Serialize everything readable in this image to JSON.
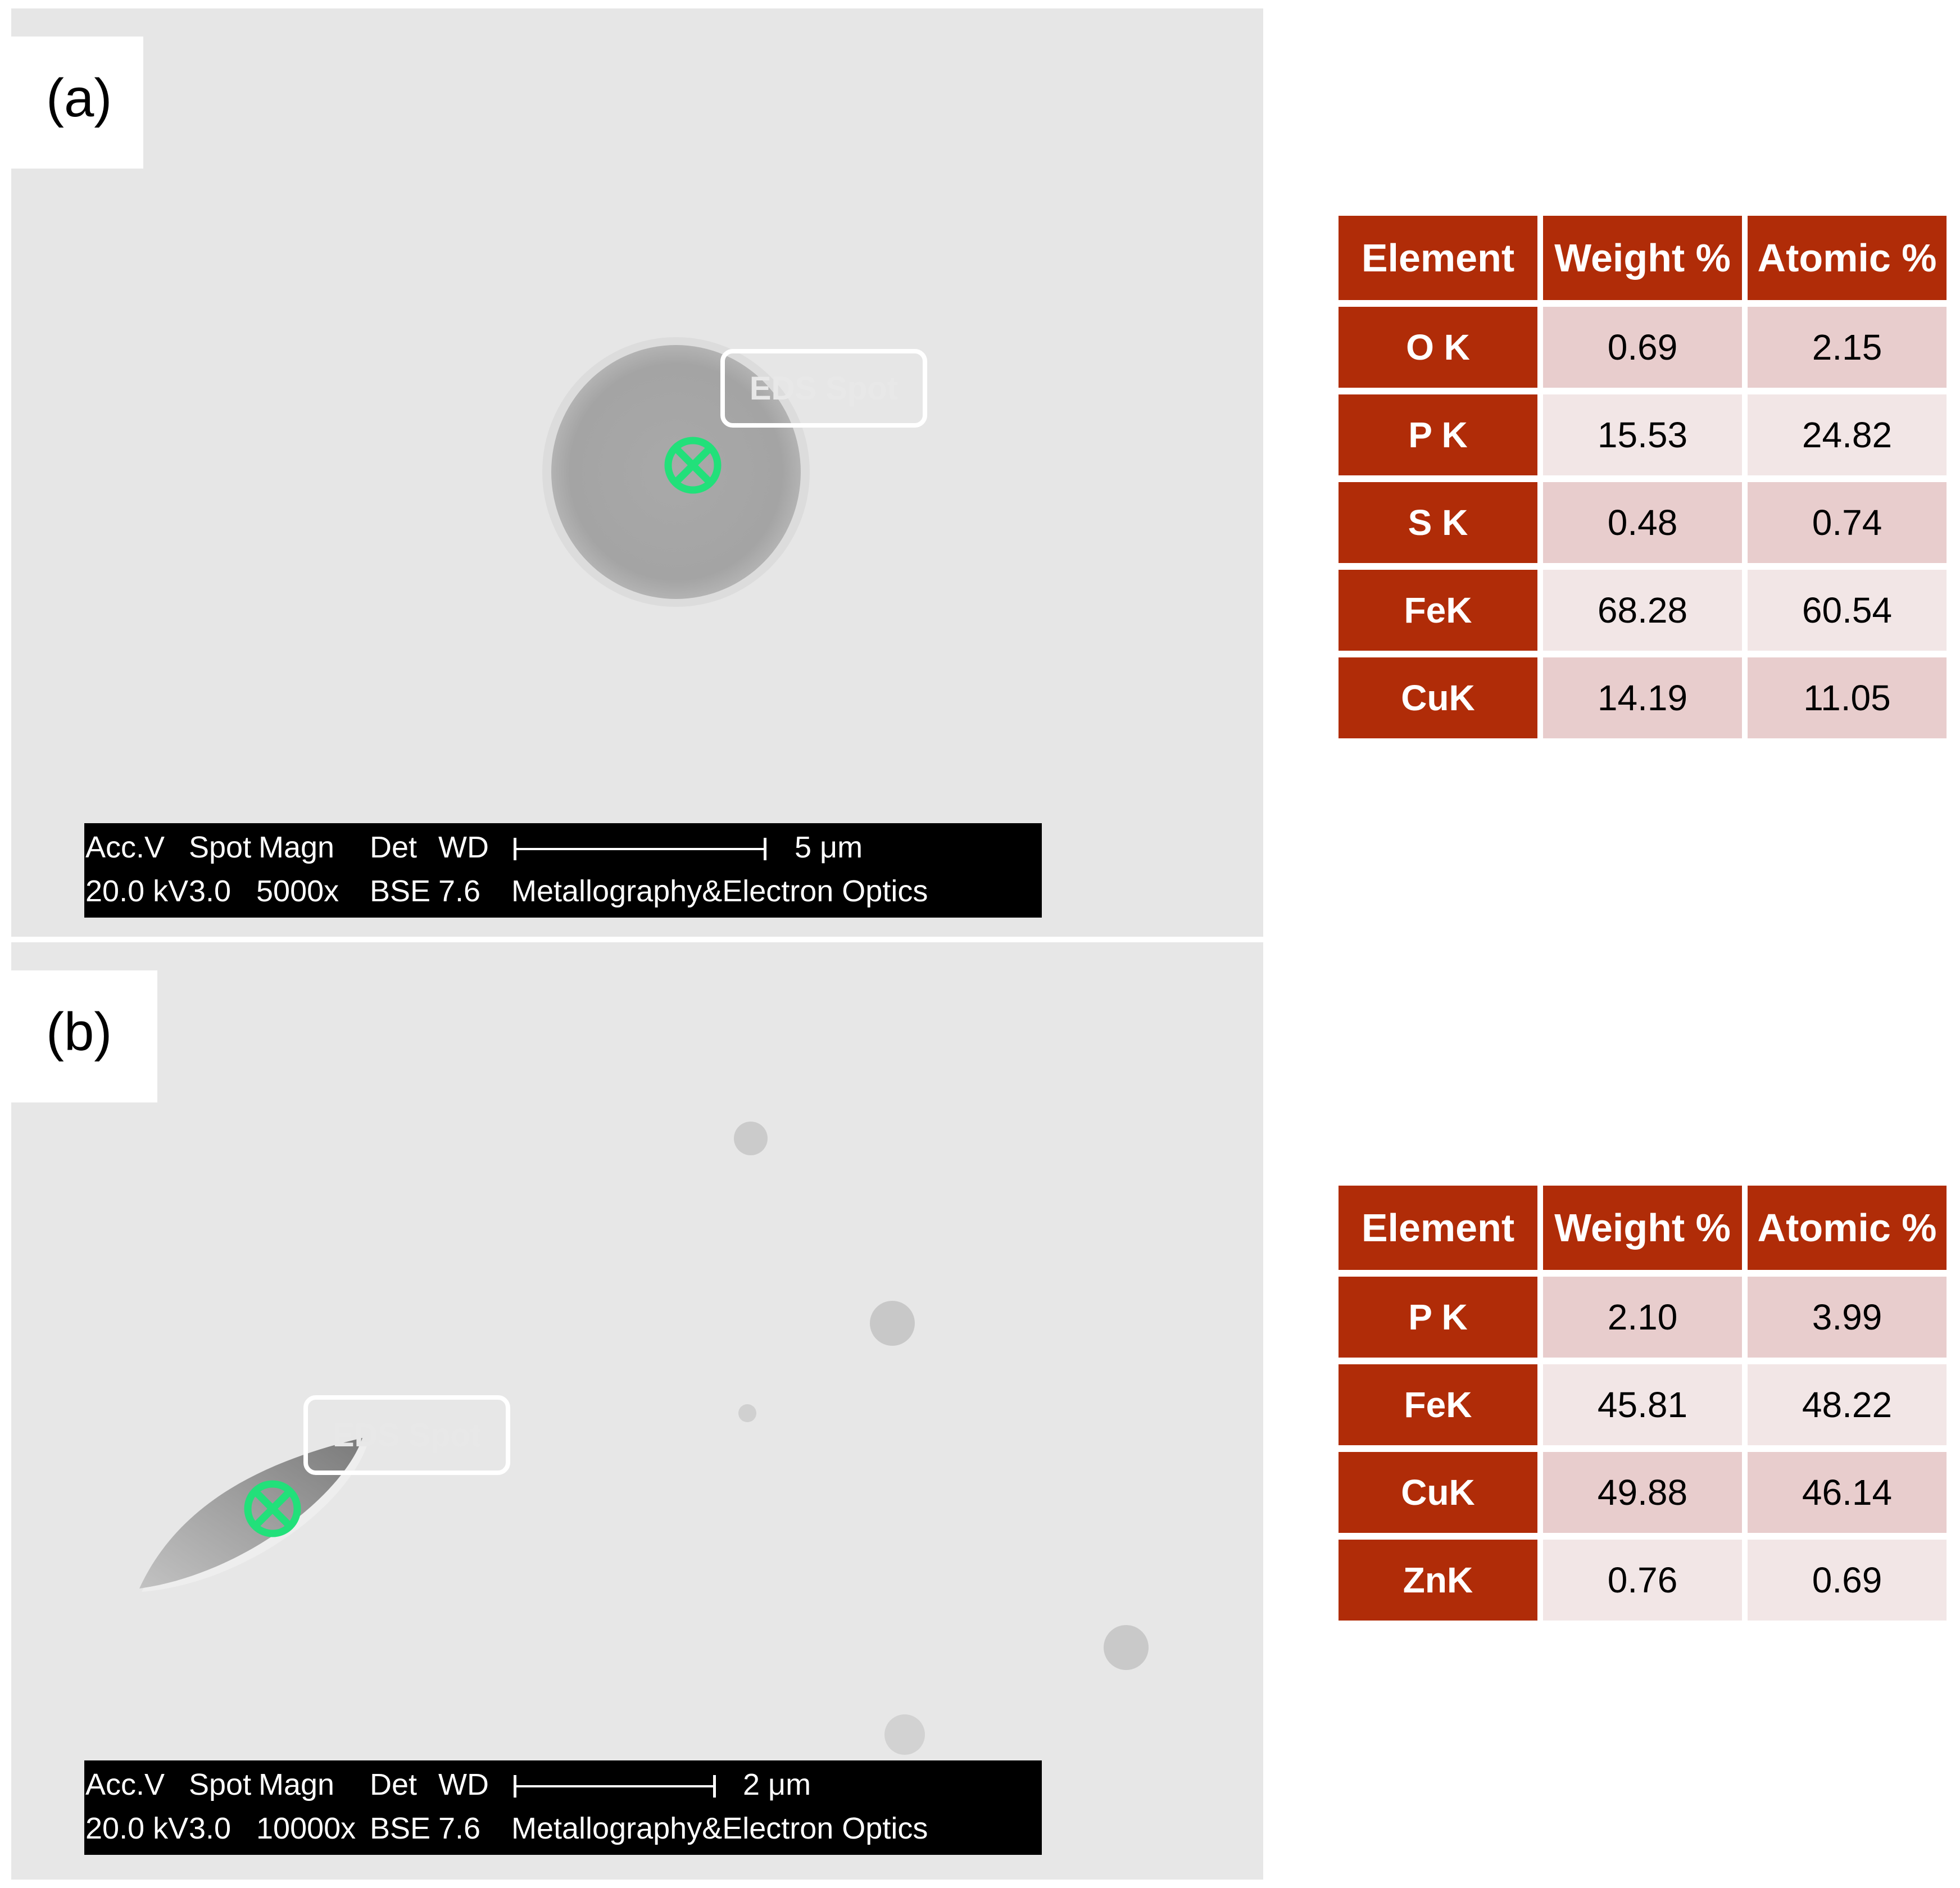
{
  "panel_a": {
    "label": "(a)",
    "eds_label": "EDS Spot",
    "databar": {
      "row1": [
        "Acc.V",
        "Spot",
        "Magn",
        "Det",
        "WD"
      ],
      "row2": [
        "20.0 kV",
        "3.0",
        "5000x",
        "BSE",
        "7.6"
      ],
      "scale": "5 μm",
      "lab": "Metallography&Electron Optics"
    },
    "table": {
      "headers": [
        "Element",
        "Weight %",
        "Atomic %"
      ],
      "rows": [
        {
          "element": "O K",
          "weight": "0.69",
          "atomic": "2.15"
        },
        {
          "element": "P K",
          "weight": "15.53",
          "atomic": "24.82"
        },
        {
          "element": "S K",
          "weight": "0.48",
          "atomic": "0.74"
        },
        {
          "element": "FeK",
          "weight": "68.28",
          "atomic": "60.54"
        },
        {
          "element": "CuK",
          "weight": "14.19",
          "atomic": "11.05"
        }
      ]
    }
  },
  "panel_b": {
    "label": "(b)",
    "eds_label": "EDS Spot",
    "databar": {
      "row1": [
        "Acc.V",
        "Spot",
        "Magn",
        "Det",
        "WD"
      ],
      "row2": [
        "20.0 kV",
        "3.0",
        "10000x",
        "BSE",
        "7.6"
      ],
      "scale": "2 μm",
      "lab": "Metallography&Electron Optics"
    },
    "table": {
      "headers": [
        "Element",
        "Weight %",
        "Atomic %"
      ],
      "rows": [
        {
          "element": "P K",
          "weight": "2.10",
          "atomic": "3.99"
        },
        {
          "element": "FeK",
          "weight": "45.81",
          "atomic": "48.22"
        },
        {
          "element": "CuK",
          "weight": "49.88",
          "atomic": "46.14"
        },
        {
          "element": "ZnK",
          "weight": "0.76",
          "atomic": "0.69"
        }
      ]
    }
  },
  "colors": {
    "table_header": "#b02c08",
    "row_odd": "#e8cdcd",
    "row_even": "#f2e6e6",
    "marker": "#22e07a",
    "sem_background": "#e6e6e6"
  },
  "icons": [
    "eds-spot-marker-icon"
  ]
}
